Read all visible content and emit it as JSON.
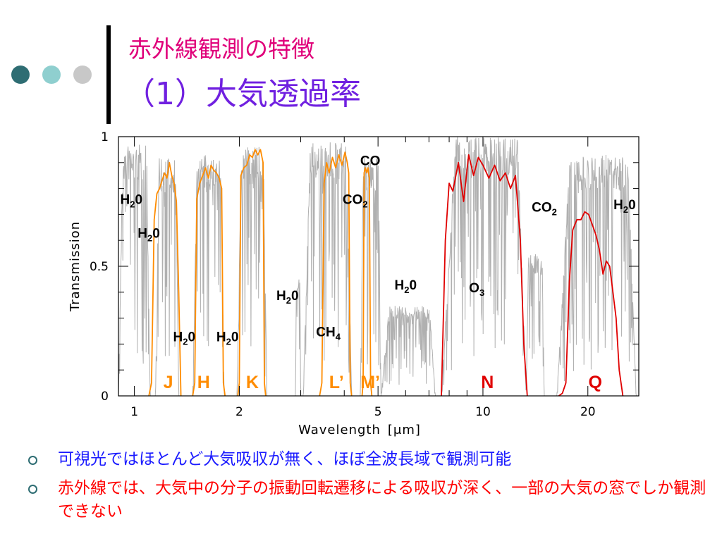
{
  "slide": {
    "title_line1": "赤外線観測の特徴",
    "title_line2": "（1）大気透過率",
    "bullets": [
      "可視光ではほとんど大気吸収が無く、ほぼ全波長域で観測可能",
      "赤外線では、大気中の分子の振動回転遷移による吸収が深く、一部の大気の窓でしか観測できない"
    ]
  },
  "colors": {
    "title1": "#e0007a",
    "title2": "#7020e0",
    "bullet1": "#1a1aff",
    "bullet2": "#ff0000",
    "dot_dark": "#2e6d73",
    "dot_mid": "#8fcfcf",
    "dot_light": "#c8c8c8",
    "atmosphere": "#b0b0b0",
    "nearir_band": "#ff8c00",
    "midir_band": "#e00000"
  },
  "chart_data": {
    "type": "line",
    "xlabel": "Wavelength",
    "xlabel_unit": "[μm]",
    "ylabel": "Transmission",
    "x_scale": "log",
    "xlim": [
      0.9,
      28
    ],
    "ylim": [
      0,
      1
    ],
    "x_ticks": [
      1,
      2,
      5,
      10,
      20
    ],
    "y_ticks": [
      0,
      0.5,
      1
    ],
    "grid": false,
    "series": [
      {
        "name": "J",
        "color": "nearir_band",
        "x": [
          1.1,
          1.12,
          1.14,
          1.16,
          1.18,
          1.2,
          1.22,
          1.24,
          1.26,
          1.28,
          1.3,
          1.32,
          1.34,
          1.36
        ],
        "y": [
          0.0,
          0.05,
          0.68,
          0.78,
          0.8,
          0.83,
          0.86,
          0.84,
          0.9,
          0.85,
          0.82,
          0.75,
          0.4,
          0.0
        ]
      },
      {
        "name": "H",
        "color": "nearir_band",
        "x": [
          1.47,
          1.49,
          1.51,
          1.54,
          1.57,
          1.6,
          1.63,
          1.66,
          1.69,
          1.72,
          1.75,
          1.78,
          1.8,
          1.82
        ],
        "y": [
          0.0,
          0.05,
          0.76,
          0.82,
          0.85,
          0.88,
          0.84,
          0.89,
          0.87,
          0.86,
          0.84,
          0.8,
          0.05,
          0.0
        ]
      },
      {
        "name": "K",
        "color": "nearir_band",
        "x": [
          1.98,
          2.0,
          2.02,
          2.06,
          2.1,
          2.14,
          2.18,
          2.22,
          2.26,
          2.3,
          2.34,
          2.36,
          2.38
        ],
        "y": [
          0.0,
          0.05,
          0.85,
          0.88,
          0.89,
          0.93,
          0.92,
          0.95,
          0.93,
          0.95,
          0.9,
          0.05,
          0.0
        ]
      },
      {
        "name": "L'",
        "color": "nearir_band",
        "x": [
          3.4,
          3.45,
          3.5,
          3.56,
          3.62,
          3.7,
          3.78,
          3.86,
          3.94,
          4.02,
          4.08,
          4.12,
          4.16,
          4.2
        ],
        "y": [
          0.0,
          0.05,
          0.82,
          0.9,
          0.86,
          0.92,
          0.88,
          0.93,
          0.89,
          0.94,
          0.9,
          0.86,
          0.05,
          0.0
        ]
      },
      {
        "name": "M'",
        "color": "nearir_band",
        "x": [
          4.5,
          4.53,
          4.56,
          4.6,
          4.64,
          4.68,
          4.72,
          4.76,
          4.8
        ],
        "y": [
          0.0,
          0.05,
          0.86,
          0.88,
          0.86,
          0.88,
          0.84,
          0.05,
          0.0
        ]
      },
      {
        "name": "N",
        "color": "midir_band",
        "x": [
          7.6,
          7.8,
          8.0,
          8.2,
          8.5,
          8.8,
          9.1,
          9.4,
          9.7,
          10.0,
          10.4,
          10.8,
          11.2,
          11.6,
          12.0,
          12.4,
          12.8,
          13.1,
          13.4
        ],
        "y": [
          0.0,
          0.6,
          0.82,
          0.79,
          0.9,
          0.75,
          0.93,
          0.85,
          0.92,
          0.89,
          0.84,
          0.89,
          0.83,
          0.86,
          0.8,
          0.85,
          0.6,
          0.2,
          0.0
        ]
      },
      {
        "name": "Q",
        "color": "midir_band",
        "x": [
          16.5,
          16.9,
          17.3,
          17.7,
          18.1,
          18.6,
          19.1,
          19.6,
          20.1,
          20.6,
          21.1,
          21.6,
          22.1,
          22.6,
          23.1,
          23.6,
          24.1,
          24.6,
          25.2
        ],
        "y": [
          0.0,
          0.01,
          0.05,
          0.44,
          0.64,
          0.68,
          0.68,
          0.71,
          0.7,
          0.66,
          0.62,
          0.56,
          0.47,
          0.52,
          0.5,
          0.4,
          0.3,
          0.1,
          0.0
        ]
      }
    ],
    "band_labels": [
      {
        "text": "J",
        "x": 1.25
      },
      {
        "text": "H",
        "x": 1.58
      },
      {
        "text": "K",
        "x": 2.18
      },
      {
        "text": "L’",
        "x": 3.8
      },
      {
        "text": "M’",
        "x": 4.75
      },
      {
        "text": "N",
        "x": 10.3
      },
      {
        "text": "Q",
        "x": 21.0
      }
    ],
    "annotations": [
      {
        "molecule": "H",
        "sub": "2",
        "tail": "0",
        "x": 0.98,
        "y": 0.74
      },
      {
        "molecule": "H",
        "sub": "2",
        "tail": "0",
        "x": 1.1,
        "y": 0.61
      },
      {
        "molecule": "H",
        "sub": "2",
        "tail": "0",
        "x": 1.39,
        "y": 0.21
      },
      {
        "molecule": "H",
        "sub": "2",
        "tail": "0",
        "x": 1.85,
        "y": 0.21
      },
      {
        "molecule": "H",
        "sub": "2",
        "tail": "0",
        "x": 2.75,
        "y": 0.37
      },
      {
        "molecule": "CH",
        "sub": "4",
        "tail": "",
        "x": 3.6,
        "y": 0.23
      },
      {
        "molecule": "CO",
        "sub": "2",
        "tail": "",
        "x": 4.3,
        "y": 0.74
      },
      {
        "molecule": "CO",
        "sub": "",
        "tail": "",
        "x": 4.75,
        "y": 0.89
      },
      {
        "molecule": "H",
        "sub": "2",
        "tail": "0",
        "x": 6.0,
        "y": 0.41
      },
      {
        "molecule": "O",
        "sub": "3",
        "tail": "",
        "x": 9.6,
        "y": 0.4
      },
      {
        "molecule": "CO",
        "sub": "2",
        "tail": "",
        "x": 15.0,
        "y": 0.71
      },
      {
        "molecule": "H",
        "sub": "2",
        "tail": "0",
        "x": 25.5,
        "y": 0.72
      }
    ]
  }
}
